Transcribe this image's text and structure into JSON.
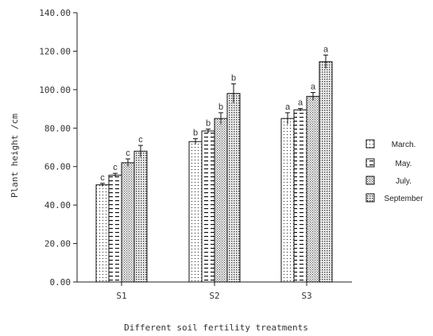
{
  "chart_data": {
    "type": "bar",
    "xlabel": "Different soil fertility treatments",
    "ylabel": "Plant height /cm",
    "ylim": [
      0,
      140
    ],
    "yticks": [
      "0.00",
      "20.00",
      "40.00",
      "60.00",
      "80.00",
      "100.00",
      "120.00",
      "140.00"
    ],
    "categories": [
      "S1",
      "S2",
      "S3"
    ],
    "series": [
      {
        "name": "March.",
        "pattern": "dots",
        "values": [
          50.5,
          73.0,
          85.0
        ],
        "errors": [
          0.8,
          1.5,
          3.0
        ],
        "letters": [
          "c",
          "b",
          "a"
        ]
      },
      {
        "name": "May.",
        "pattern": "dashes",
        "values": [
          55.5,
          78.5,
          89.5
        ],
        "errors": [
          1.0,
          1.0,
          0.7
        ],
        "letters": [
          "c",
          "b",
          "a"
        ]
      },
      {
        "name": "July.",
        "pattern": "checker",
        "values": [
          62.0,
          85.0,
          96.5
        ],
        "errors": [
          2.0,
          3.0,
          2.0
        ],
        "letters": [
          "c",
          "b",
          "a"
        ]
      },
      {
        "name": "September",
        "pattern": "dense",
        "values": [
          68.0,
          98.0,
          114.5
        ],
        "errors": [
          3.0,
          5.0,
          3.5
        ],
        "letters": [
          "c",
          "b",
          "a"
        ]
      }
    ],
    "legend_position": "right",
    "grid": false
  }
}
